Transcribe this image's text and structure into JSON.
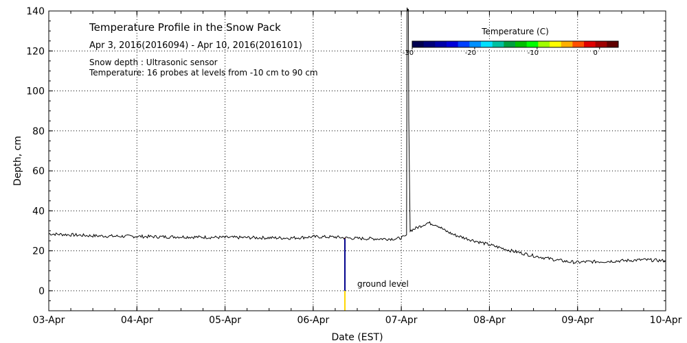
{
  "chart_data": {
    "type": "line",
    "title": "Temperature Profile in the Snow Pack",
    "subtitle": "Apr  3, 2016(2016094) - Apr 10, 2016(2016101)",
    "notes": [
      "Snow depth : Ultrasonic sensor",
      "Temperature: 16 probes at levels from -10 cm to 90 cm"
    ],
    "xlabel": "Date (EST)",
    "ylabel": "Depth, cm",
    "xlim": [
      0,
      7
    ],
    "ylim": [
      -10,
      140
    ],
    "x_ticks": [
      {
        "value": 0,
        "label": "03-Apr"
      },
      {
        "value": 1,
        "label": "04-Apr"
      },
      {
        "value": 2,
        "label": "05-Apr"
      },
      {
        "value": 3,
        "label": "06-Apr"
      },
      {
        "value": 4,
        "label": "07-Apr"
      },
      {
        "value": 5,
        "label": "08-Apr"
      },
      {
        "value": 6,
        "label": "09-Apr"
      },
      {
        "value": 7,
        "label": "10-Apr"
      }
    ],
    "y_ticks": [
      0,
      20,
      40,
      60,
      80,
      100,
      120,
      140
    ],
    "grid": true,
    "series": [
      {
        "name": "Snow depth",
        "color": "#000000",
        "x": [
          0,
          0.25,
          0.5,
          0.75,
          1.0,
          1.25,
          1.5,
          1.75,
          2.0,
          2.25,
          2.5,
          2.75,
          3.0,
          3.25,
          3.35,
          3.5,
          3.75,
          3.95,
          4.04,
          4.06,
          4.065,
          4.08,
          4.085,
          4.1,
          4.2,
          4.3,
          4.4,
          4.5,
          4.6,
          4.75,
          5.0,
          5.25,
          5.5,
          5.75,
          5.9,
          6.0,
          6.1,
          6.25,
          6.5,
          6.75,
          7.0
        ],
        "y": [
          28.5,
          28,
          27.5,
          27.3,
          27.2,
          27,
          27,
          26.8,
          26.7,
          26.6,
          26.5,
          26.4,
          27,
          26.9,
          26.5,
          26.2,
          26,
          26,
          27,
          28,
          141,
          141,
          86,
          30,
          32,
          34,
          33,
          30,
          28,
          26,
          23,
          20,
          17.5,
          15.5,
          14.5,
          14.2,
          14.5,
          14.6,
          15,
          15.5,
          15
        ]
      }
    ],
    "temperature_bar": {
      "x": 3.36,
      "segments": [
        {
          "from": -10,
          "to": 0,
          "color": "#ffd700"
        },
        {
          "from": 0,
          "to": 26,
          "color": "#00008b"
        },
        {
          "from": 26,
          "to": 26.5,
          "color": "#8b0000"
        }
      ]
    },
    "annotations": [
      {
        "text": "ground level",
        "x": 3.5,
        "y": 2
      }
    ],
    "colorbar": {
      "title": "Temperature (C)",
      "range": [
        -30,
        3
      ],
      "ticks": [
        -30,
        -20,
        -10,
        0
      ],
      "colors": [
        "#000050",
        "#00007a",
        "#0000a8",
        "#0000d8",
        "#0040ff",
        "#0090ff",
        "#00e0ff",
        "#00c0a0",
        "#00a040",
        "#00c000",
        "#00ff00",
        "#a0ff00",
        "#ffff00",
        "#ffb000",
        "#ff5000",
        "#e00000",
        "#a00000",
        "#600000"
      ]
    }
  }
}
